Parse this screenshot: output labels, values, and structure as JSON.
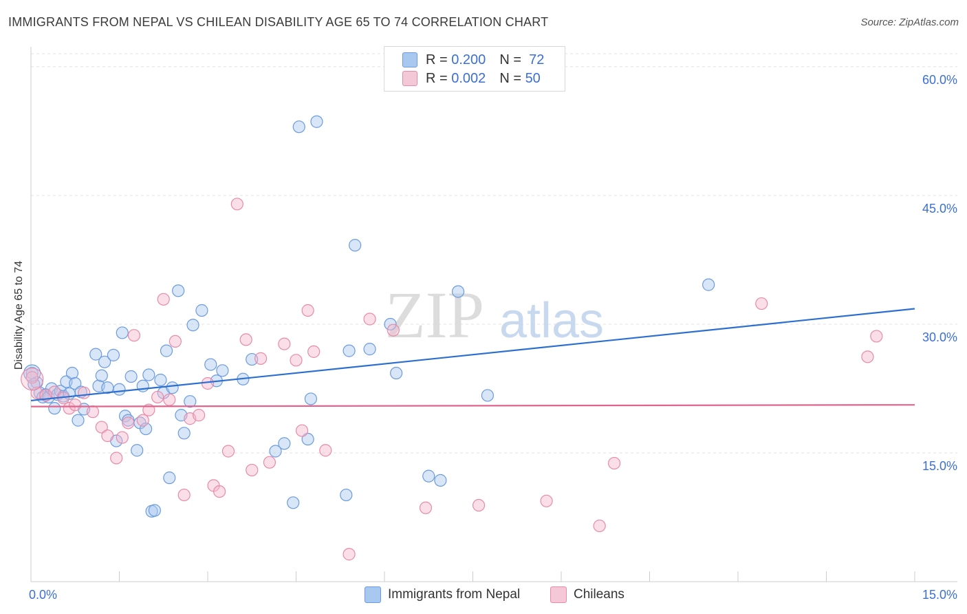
{
  "title": "IMMIGRANTS FROM NEPAL VS CHILEAN DISABILITY AGE 65 TO 74 CORRELATION CHART",
  "source": "Source: ZipAtlas.com",
  "watermark": {
    "zip": "ZIP",
    "atlas": "atlas"
  },
  "legend": {
    "r_label": "R =",
    "n_label": "N =",
    "series1": {
      "r": "0.200",
      "n": "72"
    },
    "series2": {
      "r": "0.002",
      "n": "50"
    }
  },
  "bottom_legend": {
    "series1": "Immigrants from Nepal",
    "series2": "Chileans"
  },
  "colors": {
    "blue_fill": "#a8c8f0",
    "blue_stroke": "#6a9be0",
    "blue_line": "#2c6fd0",
    "pink_fill": "#f5b8cc",
    "pink_stroke": "#e88aa8",
    "pink_line": "#e0648c",
    "axis_text": "#3a6fd8",
    "grid": "#e0e0e0"
  },
  "chart_data": {
    "type": "scatter",
    "title": "IMMIGRANTS FROM NEPAL VS CHILEAN DISABILITY AGE 65 TO 74 CORRELATION CHART",
    "xlabel": "",
    "ylabel": "Disability Age 65 to 74",
    "xlim": [
      0,
      15
    ],
    "ylim": [
      0,
      62
    ],
    "x_tick_labels": [
      "0.0%",
      "15.0%"
    ],
    "y_ticks": [
      15,
      30,
      45,
      60
    ],
    "y_tick_labels": [
      "15.0%",
      "30.0%",
      "45.0%",
      "60.0%"
    ],
    "series": [
      {
        "name": "Immigrants from Nepal",
        "r": 0.2,
        "n": 72,
        "trend": {
          "x": [
            0,
            15
          ],
          "y": [
            21.1,
            31.8
          ]
        },
        "points": [
          [
            0.02,
            24.3
          ],
          [
            0.1,
            23.2
          ],
          [
            0.15,
            22.0
          ],
          [
            0.2,
            21.5
          ],
          [
            0.25,
            21.8
          ],
          [
            0.3,
            21.5
          ],
          [
            0.35,
            22.5
          ],
          [
            0.4,
            20.2
          ],
          [
            0.45,
            21.8
          ],
          [
            0.5,
            22.2
          ],
          [
            0.55,
            21.6
          ],
          [
            0.6,
            23.3
          ],
          [
            0.65,
            21.9
          ],
          [
            0.7,
            24.3
          ],
          [
            0.75,
            23.1
          ],
          [
            0.8,
            18.8
          ],
          [
            0.85,
            22.1
          ],
          [
            0.9,
            20.1
          ],
          [
            1.1,
            26.5
          ],
          [
            1.15,
            22.8
          ],
          [
            1.2,
            24.0
          ],
          [
            1.25,
            25.6
          ],
          [
            1.3,
            22.6
          ],
          [
            1.4,
            26.4
          ],
          [
            1.45,
            16.4
          ],
          [
            1.5,
            22.4
          ],
          [
            1.55,
            29.0
          ],
          [
            1.6,
            19.3
          ],
          [
            1.65,
            18.8
          ],
          [
            1.7,
            23.9
          ],
          [
            1.8,
            15.3
          ],
          [
            1.85,
            18.5
          ],
          [
            1.9,
            22.8
          ],
          [
            1.95,
            17.8
          ],
          [
            2.0,
            24.1
          ],
          [
            2.05,
            8.2
          ],
          [
            2.1,
            8.3
          ],
          [
            2.2,
            23.5
          ],
          [
            2.25,
            22.0
          ],
          [
            2.3,
            26.9
          ],
          [
            2.35,
            12.1
          ],
          [
            2.4,
            22.6
          ],
          [
            2.5,
            33.9
          ],
          [
            2.55,
            19.4
          ],
          [
            2.6,
            17.3
          ],
          [
            2.7,
            21.0
          ],
          [
            2.75,
            29.9
          ],
          [
            2.9,
            31.6
          ],
          [
            3.05,
            25.3
          ],
          [
            3.15,
            23.4
          ],
          [
            3.25,
            24.6
          ],
          [
            3.6,
            23.6
          ],
          [
            3.75,
            25.9
          ],
          [
            4.15,
            15.2
          ],
          [
            4.3,
            16.1
          ],
          [
            4.45,
            9.2
          ],
          [
            4.55,
            53.0
          ],
          [
            4.7,
            16.6
          ],
          [
            4.75,
            21.3
          ],
          [
            4.85,
            53.6
          ],
          [
            5.35,
            10.1
          ],
          [
            5.4,
            26.9
          ],
          [
            5.5,
            39.2
          ],
          [
            5.75,
            27.1
          ],
          [
            6.1,
            30.0
          ],
          [
            6.2,
            24.3
          ],
          [
            6.75,
            12.3
          ],
          [
            6.95,
            11.8
          ],
          [
            7.25,
            33.8
          ],
          [
            7.75,
            21.7
          ],
          [
            11.5,
            34.6
          ],
          [
            0.05,
            23.0
          ]
        ]
      },
      {
        "name": "Chileans",
        "r": 0.002,
        "n": 50,
        "trend": {
          "x": [
            0,
            15
          ],
          "y": [
            20.4,
            20.6
          ]
        },
        "points": [
          [
            0.02,
            23.8
          ],
          [
            0.1,
            22.0
          ],
          [
            0.25,
            21.7
          ],
          [
            0.4,
            22.1
          ],
          [
            0.55,
            21.4
          ],
          [
            0.65,
            20.2
          ],
          [
            0.75,
            20.6
          ],
          [
            0.9,
            22.0
          ],
          [
            1.05,
            19.8
          ],
          [
            1.2,
            18.0
          ],
          [
            1.3,
            17.0
          ],
          [
            1.45,
            14.4
          ],
          [
            1.55,
            16.8
          ],
          [
            1.65,
            18.5
          ],
          [
            1.75,
            28.7
          ],
          [
            1.9,
            18.8
          ],
          [
            2.0,
            20.0
          ],
          [
            2.15,
            21.5
          ],
          [
            2.25,
            32.9
          ],
          [
            2.35,
            21.2
          ],
          [
            2.45,
            28.0
          ],
          [
            2.6,
            10.1
          ],
          [
            2.7,
            19.0
          ],
          [
            2.85,
            19.4
          ],
          [
            3.0,
            23.1
          ],
          [
            3.1,
            11.2
          ],
          [
            3.2,
            10.5
          ],
          [
            3.35,
            15.2
          ],
          [
            3.5,
            44.0
          ],
          [
            3.65,
            28.2
          ],
          [
            3.75,
            13.0
          ],
          [
            3.9,
            26.0
          ],
          [
            4.05,
            13.9
          ],
          [
            4.3,
            27.7
          ],
          [
            4.5,
            25.8
          ],
          [
            4.6,
            17.6
          ],
          [
            4.7,
            31.6
          ],
          [
            4.8,
            26.8
          ],
          [
            5.0,
            15.3
          ],
          [
            5.4,
            3.2
          ],
          [
            5.75,
            30.6
          ],
          [
            6.15,
            29.3
          ],
          [
            6.7,
            8.6
          ],
          [
            7.6,
            8.9
          ],
          [
            8.75,
            9.4
          ],
          [
            9.65,
            6.5
          ],
          [
            9.9,
            13.8
          ],
          [
            12.4,
            32.4
          ],
          [
            14.2,
            26.2
          ],
          [
            14.35,
            28.6
          ]
        ]
      }
    ]
  }
}
